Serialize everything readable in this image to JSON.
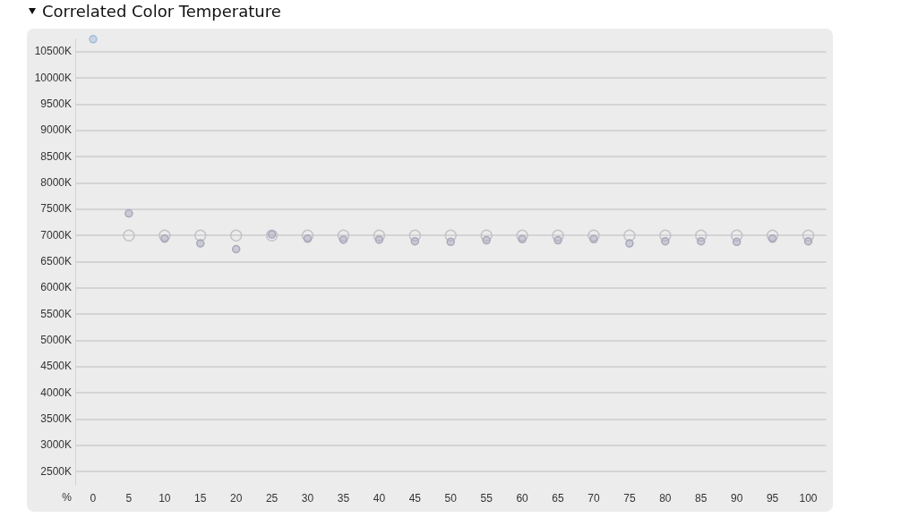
{
  "chart_data": {
    "type": "scatter",
    "title": "Correlated Color Temperature",
    "xlabel": "%",
    "categories": [
      "0",
      "5",
      "10",
      "15",
      "20",
      "25",
      "30",
      "35",
      "40",
      "45",
      "50",
      "55",
      "60",
      "65",
      "70",
      "75",
      "80",
      "85",
      "90",
      "95",
      "100"
    ],
    "series": [
      {
        "color": "#c2c2ca",
        "marker": "circle",
        "values": [
          null,
          7000,
          7000,
          7000,
          7000,
          7000,
          7000,
          7000,
          7000,
          7000,
          7000,
          7000,
          7000,
          7000,
          7000,
          7000,
          7000,
          7000,
          7000,
          7000,
          7000
        ]
      },
      {
        "color": "#a8a8bc",
        "colors": [
          "#a4bcdc",
          null,
          null,
          null,
          null,
          null,
          null,
          null,
          null,
          null,
          null,
          null,
          null,
          null,
          null,
          null,
          null,
          null,
          null,
          null,
          null
        ],
        "marker": "circle",
        "values": [
          10740,
          7420,
          6940,
          6850,
          6740,
          7020,
          6940,
          6920,
          6920,
          6890,
          6880,
          6910,
          6930,
          6910,
          6930,
          6850,
          6890,
          6890,
          6880,
          6940,
          6890
        ]
      }
    ],
    "ylim": [
      2250,
      10750
    ],
    "yticks": [
      {
        "value": 2500,
        "label": "2500K"
      },
      {
        "value": 3000,
        "label": "3000K"
      },
      {
        "value": 3500,
        "label": "3500K"
      },
      {
        "value": 4000,
        "label": "4000K"
      },
      {
        "value": 4500,
        "label": "4500K"
      },
      {
        "value": 5000,
        "label": "5000K"
      },
      {
        "value": 5500,
        "label": "5500K"
      },
      {
        "value": 6000,
        "label": "6000K"
      },
      {
        "value": 6500,
        "label": "6500K"
      },
      {
        "value": 7000,
        "label": "7000K"
      },
      {
        "value": 7500,
        "label": "7500K"
      },
      {
        "value": 8000,
        "label": "8000K"
      },
      {
        "value": 8500,
        "label": "8500K"
      },
      {
        "value": 9000,
        "label": "9000K"
      },
      {
        "value": 9500,
        "label": "9500K"
      },
      {
        "value": 10000,
        "label": "10000K"
      },
      {
        "value": 10500,
        "label": "10500K"
      }
    ],
    "grid": "y",
    "legend": false
  }
}
